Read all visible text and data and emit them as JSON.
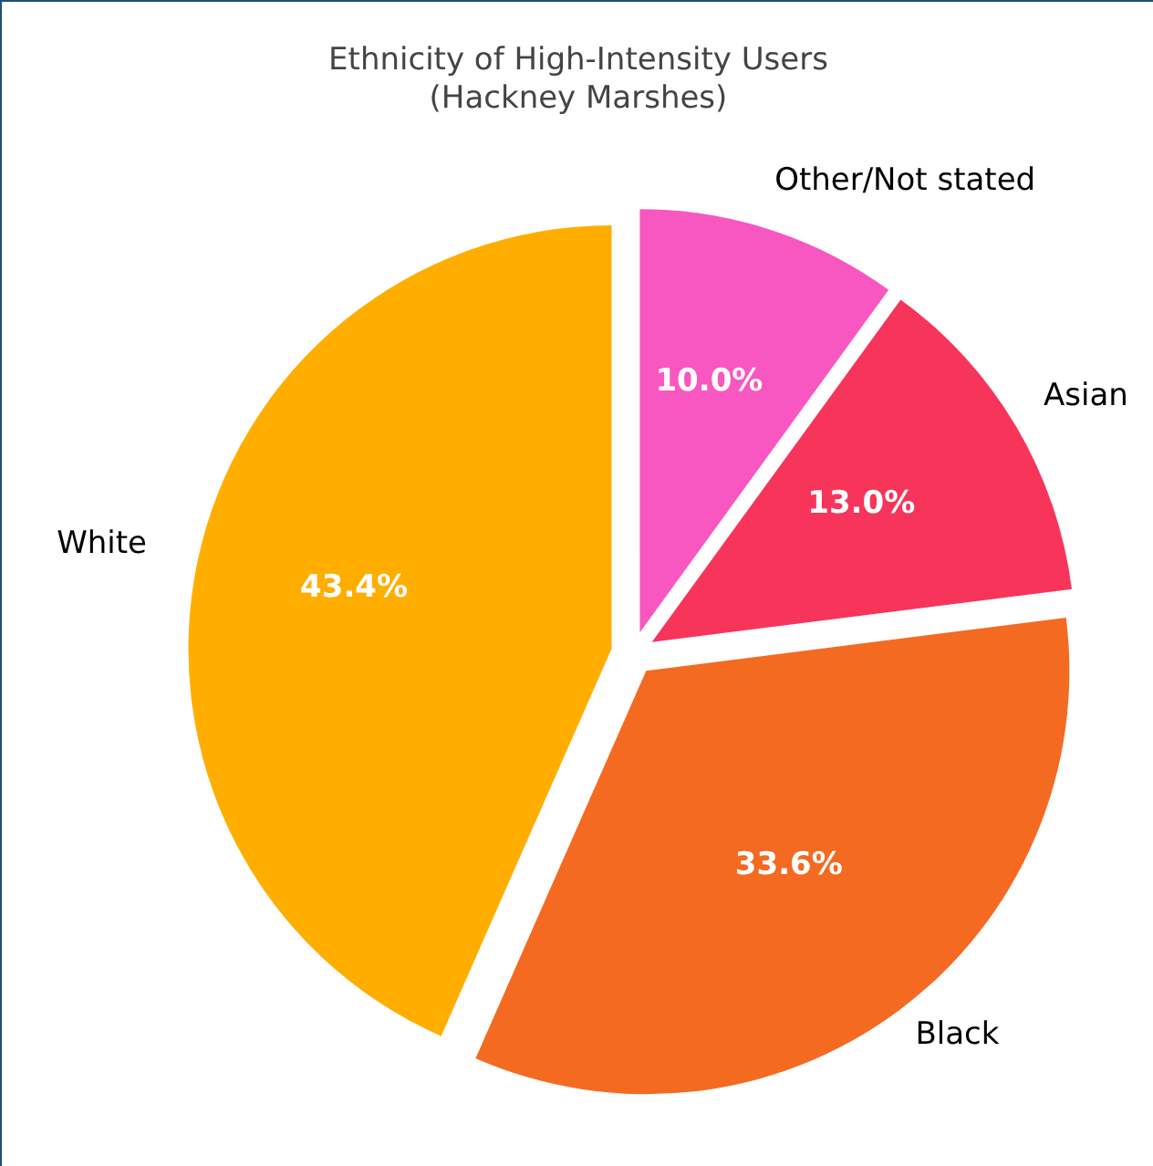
{
  "chart_data": {
    "type": "pie",
    "title": "Ethnicity of High-Intensity Users\n(Hackney Marshes)",
    "categories": [
      "White",
      "Black",
      "Asian",
      "Other/Not stated"
    ],
    "values": [
      43.4,
      33.6,
      13.0,
      10.0
    ],
    "colors": [
      "#ffae00",
      "#f46a21",
      "#f7355a",
      "#f857c1"
    ],
    "value_labels": [
      "43.4%",
      "33.6%",
      "13.0%",
      "10.0%"
    ]
  }
}
